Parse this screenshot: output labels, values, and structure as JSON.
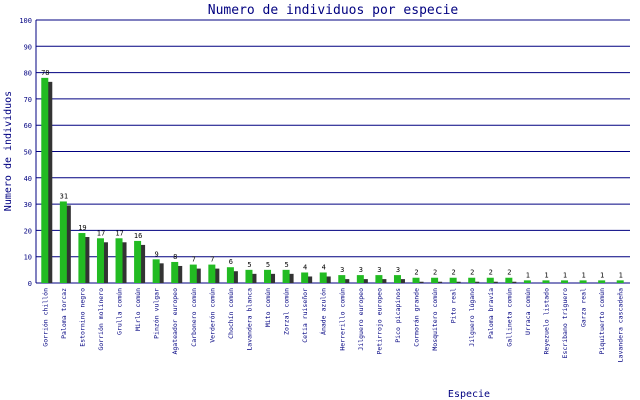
{
  "chart_data": {
    "type": "bar",
    "title": "Numero de individuos por especie",
    "xlabel": "Especie",
    "ylabel": "Numero de individuos",
    "ylim": [
      0,
      100
    ],
    "yticks": [
      0,
      10,
      20,
      30,
      40,
      50,
      60,
      70,
      80,
      90,
      100
    ],
    "grid": true,
    "categories": [
      "Gorrión chillón",
      "Paloma torcaz",
      "Estornino negro",
      "Gorrión molinero",
      "Grulla común",
      "Mirlo común",
      "Pinzón vulgar",
      "Agateador europeo",
      "Carbonero común",
      "Verderón común",
      "Chochín común",
      "Lavandera blanca",
      "Mito común",
      "Zorzal común",
      "Cetia ruiseñor",
      "Ánade azulón",
      "Herrerillo común",
      "Jilguero europeo",
      "Petirrojo europeo",
      "Pico picapinos",
      "Cormorán grande",
      "Mosquitero común",
      "Pito real",
      "Jilguero lúgano",
      "Paloma bravía",
      "Gallineta común",
      "Urraca común",
      "Reyezuelo listado",
      "Escribano triguero",
      "Garza real",
      "Piquituerto común",
      "Lavandera cascadeña"
    ],
    "values": [
      78,
      31,
      19,
      17,
      17,
      16,
      9,
      8,
      7,
      7,
      6,
      5,
      5,
      5,
      4,
      4,
      3,
      3,
      3,
      3,
      2,
      2,
      2,
      2,
      2,
      2,
      1,
      1,
      1,
      1,
      1,
      1
    ],
    "colors": {
      "bar": "#22bb22",
      "shadow": "#333333",
      "grid": "#000080",
      "text": "#000080",
      "value_label": "#000000"
    }
  }
}
